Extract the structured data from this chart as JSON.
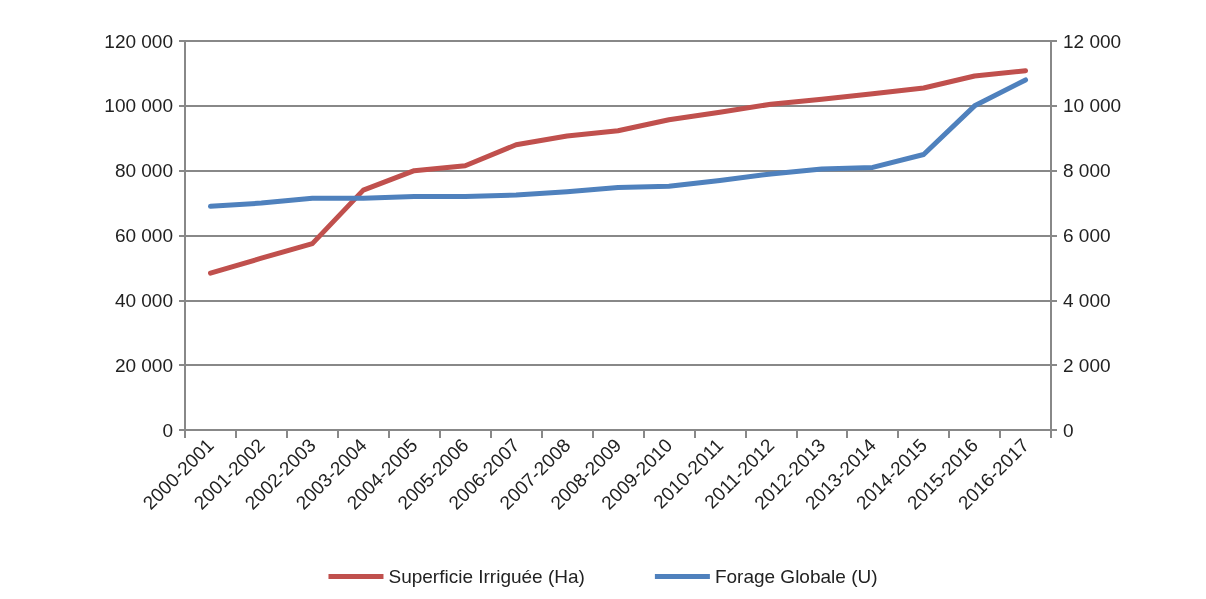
{
  "chart_data": {
    "type": "line",
    "categories": [
      "2000-2001",
      "2001-2002",
      "2002-2003",
      "2003-2004",
      "2004-2005",
      "2005-2006",
      "2006-2007",
      "2007-2008",
      "2008-2009",
      "2009-2010",
      "2010-2011",
      "2011-2012",
      "2012-2013",
      "2013-2014",
      "2014-2015",
      "2015-2016",
      "2016-2017"
    ],
    "series": [
      {
        "name": "Superficie Irriguée (Ha)",
        "color": "#c0504d",
        "values": [
          48400,
          53000,
          57500,
          74000,
          80000,
          81500,
          88000,
          90700,
          92300,
          95700,
          98000,
          100500,
          102000,
          103700,
          105500,
          109200,
          110800
        ]
      },
      {
        "name": "Forage Globale (U)",
        "color": "#4f81bd",
        "axis": "y2",
        "values": [
          6900,
          7000,
          7150,
          7150,
          7200,
          7200,
          7250,
          7350,
          7480,
          7520,
          7700,
          7900,
          8050,
          8100,
          8500,
          10000,
          10800
        ]
      }
    ],
    "ylim": [
      0,
      120000
    ],
    "yticks": [
      {
        "value": 0,
        "label": "0"
      },
      {
        "value": 20000,
        "label": "20 000"
      },
      {
        "value": 40000,
        "label": "40 000"
      },
      {
        "value": 60000,
        "label": "60 000"
      },
      {
        "value": 80000,
        "label": "80 000"
      },
      {
        "value": 100000,
        "label": "100 000"
      },
      {
        "value": 120000,
        "label": "120 000"
      }
    ],
    "y2lim": [
      0,
      12000
    ],
    "y2ticks": [
      {
        "value": 0,
        "label": "0"
      },
      {
        "value": 2000,
        "label": "2 000"
      },
      {
        "value": 4000,
        "label": "4 000"
      },
      {
        "value": 6000,
        "label": "6 000"
      },
      {
        "value": 8000,
        "label": "8 000"
      },
      {
        "value": 10000,
        "label": "10 000"
      },
      {
        "value": 12000,
        "label": "12 000"
      }
    ],
    "grid": "y",
    "legend": "bottom",
    "marker": "none",
    "line_style": "solid"
  }
}
